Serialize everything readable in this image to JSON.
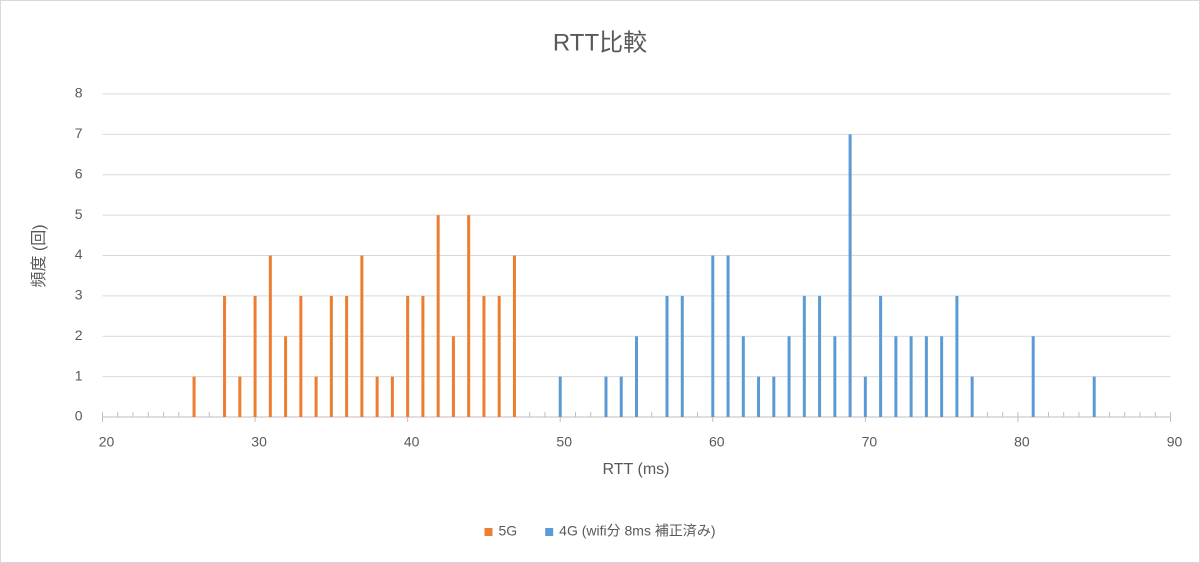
{
  "chart_data": {
    "type": "bar",
    "title": "RTT比較",
    "x_label": "RTT (ms)",
    "y_label": "頻度 (回)",
    "xlim": [
      20,
      90
    ],
    "xticks": [
      20,
      30,
      40,
      50,
      60,
      70,
      80,
      90
    ],
    "xminorticks": [
      20,
      21,
      22,
      23,
      24,
      25,
      26,
      27,
      28,
      29,
      30,
      31,
      32,
      33,
      34,
      35,
      36,
      37,
      38,
      39,
      40,
      41,
      42,
      43,
      44,
      45,
      46,
      47,
      48,
      49,
      50,
      51,
      52,
      53,
      54,
      55,
      56,
      57,
      58,
      59,
      60,
      61,
      62,
      63,
      64,
      65,
      66,
      67,
      68,
      69,
      70,
      71,
      72,
      73,
      74,
      75,
      76,
      77,
      78,
      79,
      80,
      81,
      82,
      83,
      84,
      85,
      86,
      87,
      88,
      89,
      90
    ],
    "ylim": [
      0,
      8
    ],
    "yticks": [
      0,
      1,
      2,
      3,
      4,
      5,
      6,
      7,
      8
    ],
    "grid": true,
    "legend": "bottom",
    "series": [
      {
        "name": "5G",
        "color": "#ed7d31",
        "x": [
          26,
          28,
          29,
          30,
          31,
          32,
          33,
          34,
          35,
          36,
          37,
          38,
          39,
          40,
          41,
          42,
          43,
          44,
          45,
          46,
          47
        ],
        "values": [
          1,
          3,
          1,
          3,
          4,
          2,
          3,
          1,
          3,
          3,
          4,
          1,
          1,
          3,
          3,
          5,
          2,
          5,
          3,
          3,
          4
        ]
      },
      {
        "name": "4G (wifi分 8ms 補正済み)",
        "color": "#5b9bd5",
        "x": [
          50,
          53,
          54,
          55,
          57,
          58,
          60,
          61,
          62,
          63,
          64,
          65,
          66,
          67,
          68,
          69,
          70,
          71,
          72,
          73,
          74,
          75,
          76,
          77,
          81,
          85
        ],
        "values": [
          1,
          1,
          1,
          2,
          3,
          3,
          4,
          4,
          2,
          1,
          1,
          2,
          3,
          3,
          2,
          7,
          1,
          3,
          2,
          2,
          2,
          2,
          3,
          1,
          2,
          1
        ]
      }
    ]
  }
}
